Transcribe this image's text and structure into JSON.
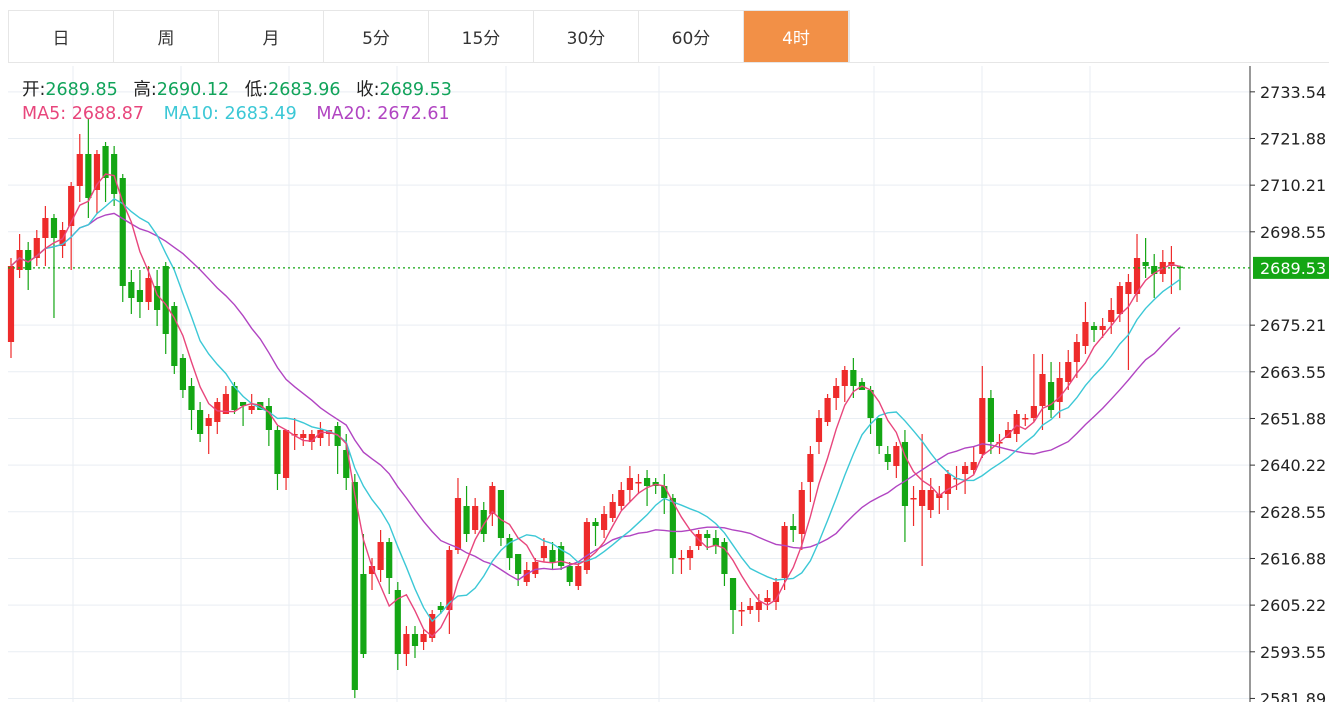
{
  "tabs": [
    {
      "label": "日",
      "active": false
    },
    {
      "label": "周",
      "active": false
    },
    {
      "label": "月",
      "active": false
    },
    {
      "label": "5分",
      "active": false
    },
    {
      "label": "15分",
      "active": false
    },
    {
      "label": "30分",
      "active": false
    },
    {
      "label": "60分",
      "active": false
    },
    {
      "label": "4时",
      "active": true
    }
  ],
  "ohlc": {
    "open_label": "开:",
    "open": "2689.85",
    "high_label": "高:",
    "high": "2690.12",
    "low_label": "低:",
    "low": "2683.96",
    "close_label": "收:",
    "close": "2689.53"
  },
  "ma": {
    "ma5_label": "MA5:",
    "ma5": "2688.87",
    "ma10_label": "MA10:",
    "ma10": "2683.49",
    "ma20_label": "MA20:",
    "ma20": "2672.61"
  },
  "colors": {
    "up": "#ee2b2b",
    "down": "#14a614",
    "ma5": "#e8467c",
    "ma10": "#3cc8d6",
    "ma20": "#b145c2",
    "accent": "#f29047",
    "price_tag": "#14a614"
  },
  "chart_data": {
    "type": "candlestick",
    "y_ticks": [
      2733.54,
      2721.88,
      2710.21,
      2698.55,
      2675.21,
      2663.55,
      2651.88,
      2640.22,
      2628.55,
      2616.88,
      2605.22,
      2593.55,
      2581.89
    ],
    "ylim": [
      2581.0,
      2740.0
    ],
    "last_price": "2689.53",
    "candles": [
      [
        2671,
        2690,
        2667,
        2692
      ],
      [
        2689,
        2694,
        2687,
        2698
      ],
      [
        2694,
        2689,
        2684,
        2696
      ],
      [
        2692,
        2697,
        2690,
        2699
      ],
      [
        2697,
        2702,
        2690,
        2705
      ],
      [
        2702,
        2697,
        2677,
        2703
      ],
      [
        2695,
        2699,
        2692,
        2701
      ],
      [
        2700,
        2710,
        2689,
        2711
      ],
      [
        2710,
        2718,
        2706,
        2723
      ],
      [
        2718,
        2707,
        2702,
        2727
      ],
      [
        2709,
        2718,
        2703,
        2719
      ],
      [
        2720,
        2712,
        2706,
        2721
      ],
      [
        2718,
        2708,
        2705,
        2720
      ],
      [
        2712,
        2685,
        2681,
        2713
      ],
      [
        2686,
        2682,
        2678,
        2689
      ],
      [
        2684,
        2681,
        2677,
        2689
      ],
      [
        2681,
        2687,
        2679,
        2690
      ],
      [
        2685,
        2679,
        2675,
        2689
      ],
      [
        2690,
        2673,
        2668,
        2691
      ],
      [
        2680,
        2665,
        2663,
        2681
      ],
      [
        2667,
        2659,
        2657,
        2668
      ],
      [
        2660,
        2654,
        2649,
        2662
      ],
      [
        2654,
        2648,
        2646,
        2656
      ],
      [
        2650,
        2652,
        2643,
        2653
      ],
      [
        2651,
        2656,
        2648,
        2657
      ],
      [
        2653,
        2658,
        2653,
        2660
      ],
      [
        2660,
        2654,
        2653,
        2661
      ],
      [
        2656,
        2655,
        2650,
        2656
      ],
      [
        2654,
        2655,
        2653,
        2658
      ],
      [
        2656,
        2654,
        2654,
        2655
      ],
      [
        2655,
        2649,
        2645,
        2657
      ],
      [
        2649,
        2638,
        2634,
        2650
      ],
      [
        2637,
        2649,
        2634,
        2649
      ],
      [
        2648,
        2648,
        2644,
        2652
      ],
      [
        2647,
        2648,
        2645,
        2649
      ],
      [
        2646,
        2648,
        2644,
        2649
      ],
      [
        2647,
        2649,
        2645,
        2651
      ],
      [
        2648,
        2649,
        2645,
        2649
      ],
      [
        2650,
        2645,
        2638,
        2651
      ],
      [
        2644,
        2637,
        2634,
        2648
      ],
      [
        2636,
        2584,
        2582,
        2638
      ],
      [
        2613,
        2593,
        2592,
        2623
      ],
      [
        2613,
        2615,
        2609,
        2617
      ],
      [
        2614,
        2621,
        2611,
        2624
      ],
      [
        2621,
        2612,
        2608,
        2622
      ],
      [
        2609,
        2593,
        2589,
        2611
      ],
      [
        2593,
        2598,
        2590,
        2600
      ],
      [
        2598,
        2595,
        2592,
        2600
      ],
      [
        2596,
        2598,
        2594,
        2599
      ],
      [
        2597,
        2603,
        2596,
        2604
      ],
      [
        2605,
        2604,
        2603,
        2606
      ],
      [
        2604,
        2619,
        2598,
        2620
      ],
      [
        2619,
        2632,
        2618,
        2637
      ],
      [
        2630,
        2623,
        2621,
        2635
      ],
      [
        2624,
        2630,
        2623,
        2632
      ],
      [
        2629,
        2623,
        2621,
        2631
      ],
      [
        2628,
        2635,
        2625,
        2636
      ],
      [
        2634,
        2622,
        2620,
        2634
      ],
      [
        2622,
        2617,
        2614,
        2623
      ],
      [
        2618,
        2613,
        2610,
        2618
      ],
      [
        2611,
        2614,
        2610,
        2616
      ],
      [
        2613,
        2616,
        2612,
        2617
      ],
      [
        2617,
        2620,
        2616,
        2622
      ],
      [
        2619,
        2616,
        2614,
        2621
      ],
      [
        2620,
        2615,
        2614,
        2621
      ],
      [
        2615,
        2611,
        2610,
        2616
      ],
      [
        2610,
        2615,
        2609,
        2616
      ],
      [
        2614,
        2626,
        2613,
        2627
      ],
      [
        2626,
        2625,
        2620,
        2627
      ],
      [
        2624,
        2628,
        2622,
        2630
      ],
      [
        2627,
        2631,
        2626,
        2633
      ],
      [
        2630,
        2634,
        2629,
        2636
      ],
      [
        2634,
        2637,
        2631,
        2640
      ],
      [
        2636,
        2636,
        2633,
        2638
      ],
      [
        2637,
        2635,
        2630,
        2639
      ],
      [
        2636,
        2635,
        2633,
        2637
      ],
      [
        2635,
        2632,
        2628,
        2638
      ],
      [
        2632,
        2617,
        2613,
        2633
      ],
      [
        2617,
        2617,
        2613,
        2619
      ],
      [
        2617,
        2619,
        2614,
        2620
      ],
      [
        2620,
        2623,
        2619,
        2624
      ],
      [
        2623,
        2622,
        2619,
        2624
      ],
      [
        2622,
        2620,
        2618,
        2624
      ],
      [
        2621,
        2613,
        2610,
        2622
      ],
      [
        2612,
        2604,
        2598,
        2612
      ],
      [
        2604,
        2604,
        2600,
        2606
      ],
      [
        2604,
        2605,
        2603,
        2607
      ],
      [
        2604,
        2606,
        2601,
        2608
      ],
      [
        2606,
        2607,
        2604,
        2609
      ],
      [
        2606,
        2611,
        2604,
        2612
      ],
      [
        2612,
        2625,
        2609,
        2626
      ],
      [
        2625,
        2624,
        2621,
        2628
      ],
      [
        2623,
        2634,
        2619,
        2636
      ],
      [
        2636,
        2643,
        2631,
        2645
      ],
      [
        2646,
        2652,
        2643,
        2654
      ],
      [
        2651,
        2657,
        2650,
        2658
      ],
      [
        2657,
        2660,
        2654,
        2662
      ],
      [
        2660,
        2664,
        2656,
        2665
      ],
      [
        2664,
        2660,
        2657,
        2667
      ],
      [
        2661,
        2659,
        2659,
        2662
      ],
      [
        2659,
        2652,
        2648,
        2660
      ],
      [
        2652,
        2645,
        2643,
        2652
      ],
      [
        2643,
        2641,
        2639,
        2645
      ],
      [
        2640,
        2645,
        2637,
        2646
      ],
      [
        2646,
        2630,
        2621,
        2649
      ],
      [
        2632,
        2632,
        2625,
        2635
      ],
      [
        2630,
        2634,
        2615,
        2648
      ],
      [
        2629,
        2634,
        2627,
        2637
      ],
      [
        2632,
        2633,
        2628,
        2635
      ],
      [
        2633,
        2638,
        2629,
        2639
      ],
      [
        2637,
        2637,
        2634,
        2640
      ],
      [
        2638,
        2640,
        2633,
        2641
      ],
      [
        2639,
        2641,
        2638,
        2645
      ],
      [
        2643,
        2657,
        2642,
        2665
      ],
      [
        2657,
        2646,
        2643,
        2659
      ],
      [
        2646,
        2646,
        2643,
        2648
      ],
      [
        2647,
        2649,
        2647,
        2651
      ],
      [
        2648,
        2653,
        2646,
        2654
      ],
      [
        2652,
        2652,
        2650,
        2653
      ],
      [
        2652,
        2655,
        2651,
        2668
      ],
      [
        2655,
        2663,
        2649,
        2668
      ],
      [
        2661,
        2654,
        2652,
        2666
      ],
      [
        2656,
        2662,
        2652,
        2666
      ],
      [
        2661,
        2666,
        2659,
        2669
      ],
      [
        2666,
        2671,
        2662,
        2673
      ],
      [
        2670,
        2676,
        2668,
        2681
      ],
      [
        2675,
        2674,
        2671,
        2676
      ],
      [
        2674,
        2675,
        2672,
        2677
      ],
      [
        2676,
        2679,
        2673,
        2682
      ],
      [
        2678,
        2685,
        2676,
        2686
      ],
      [
        2683,
        2686,
        2664,
        2688
      ],
      [
        2683,
        2692,
        2681,
        2698
      ],
      [
        2691,
        2690,
        2687,
        2697
      ],
      [
        2690,
        2688,
        2682,
        2693
      ],
      [
        2688,
        2691,
        2686,
        2694
      ],
      [
        2690,
        2691,
        2683,
        2695
      ],
      [
        2689.85,
        2689.53,
        2683.96,
        2690.12
      ]
    ]
  }
}
